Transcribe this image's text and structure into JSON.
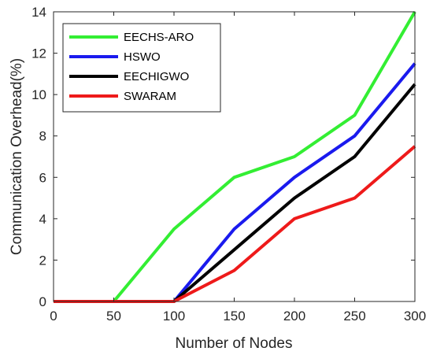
{
  "chart_data": {
    "type": "line",
    "title": "",
    "xlabel": "Number of Nodes",
    "ylabel": "Communication Overhead(%)",
    "x": [
      0,
      50,
      100,
      150,
      200,
      250,
      300
    ],
    "xlim": [
      0,
      300
    ],
    "ylim": [
      0,
      14
    ],
    "xticks": [
      "0",
      "50",
      "100",
      "150",
      "200",
      "250",
      "300"
    ],
    "yticks": [
      "0",
      "2",
      "4",
      "6",
      "8",
      "10",
      "12",
      "14"
    ],
    "grid": false,
    "legend_position": "top-left",
    "series": [
      {
        "name": "EECHS-ARO",
        "color": "#33ee33",
        "values": [
          0,
          0,
          3.5,
          6,
          7,
          9,
          14
        ]
      },
      {
        "name": "HSWO",
        "color": "#1a1aee",
        "values": [
          0,
          0,
          0,
          3.5,
          6,
          8,
          11.5
        ]
      },
      {
        "name": "EECHIGWO",
        "color": "#000000",
        "values": [
          0,
          0,
          0,
          2.5,
          5,
          7,
          10.5
        ]
      },
      {
        "name": "SWARAM",
        "color": "#ee1a1a",
        "values": [
          0,
          0,
          0,
          1.5,
          4,
          5,
          7.5
        ]
      }
    ]
  }
}
